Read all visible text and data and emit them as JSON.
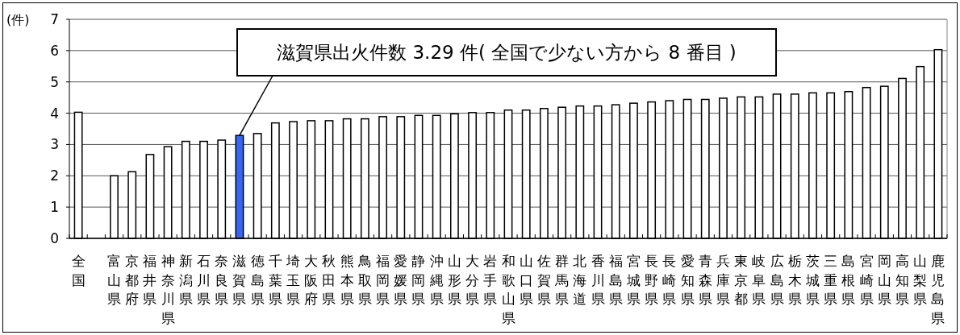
{
  "chart_data": {
    "type": "bar",
    "ylabel": "(件)",
    "categories": [
      "全国",
      null,
      "富山県",
      "京都府",
      "福井県",
      "神奈川県",
      "新潟県",
      "石川県",
      "奈良県",
      "滋賀県",
      "徳島県",
      "千葉県",
      "埼玉県",
      "大阪府",
      "秋田県",
      "熊本県",
      "鳥取県",
      "福岡県",
      "愛媛県",
      "静岡県",
      "沖縄県",
      "山形県",
      "大分県",
      "岩手県",
      "和歌山県",
      "山口県",
      "佐賀県",
      "群馬県",
      "北海道",
      "香川県",
      "福島県",
      "宮城県",
      "長野県",
      "長崎県",
      "愛知県",
      "青森県",
      "兵庫県",
      "東京都",
      "岐阜県",
      "広島県",
      "栃木県",
      "茨城県",
      "三重県",
      "島根県",
      "宮崎県",
      "岡山県",
      "高知県",
      "山梨県",
      "鹿児島県"
    ],
    "values": [
      4.03,
      null,
      2.0,
      2.13,
      2.68,
      2.93,
      3.1,
      3.1,
      3.14,
      3.29,
      3.35,
      3.69,
      3.73,
      3.76,
      3.76,
      3.82,
      3.82,
      3.89,
      3.89,
      3.93,
      3.93,
      3.98,
      4.02,
      4.02,
      4.1,
      4.1,
      4.15,
      4.19,
      4.23,
      4.23,
      4.27,
      4.32,
      4.36,
      4.4,
      4.44,
      4.44,
      4.48,
      4.52,
      4.52,
      4.61,
      4.61,
      4.65,
      4.65,
      4.69,
      4.82,
      4.86,
      5.11,
      5.49,
      6.03
    ],
    "colors": [
      "#ffffff",
      null,
      "#ffffff",
      "#ffffff",
      "#ffffff",
      "#ffffff",
      "#ffffff",
      "#ffffff",
      "#ffffff",
      "#3366ff",
      "#ffffff",
      "#ffffff",
      "#ffffff",
      "#ffffff",
      "#ffffff",
      "#ffffff",
      "#ffffff",
      "#ffffff",
      "#ffffff",
      "#ffffff",
      "#ffffff",
      "#ffffff",
      "#ffffff",
      "#ffffff",
      "#ffffff",
      "#ffffff",
      "#ffffff",
      "#ffffff",
      "#ffffff",
      "#ffffff",
      "#ffffff",
      "#ffffff",
      "#ffffff",
      "#ffffff",
      "#ffffff",
      "#ffffff",
      "#ffffff",
      "#ffffff",
      "#ffffff",
      "#ffffff",
      "#ffffff",
      "#ffffff",
      "#ffffff",
      "#ffffff",
      "#ffffff",
      "#ffffff",
      "#ffffff",
      "#ffffff",
      "#ffffff"
    ],
    "ylim": [
      0,
      7
    ],
    "yticks": [
      0,
      1,
      2,
      3,
      4,
      5,
      6,
      7
    ],
    "grid": "y",
    "annotations": [
      {
        "text": "滋賀県出火件数 3.29 件( 全国で少ない方から 8 番目 )",
        "x": "滋賀県",
        "y": 3.29
      }
    ]
  }
}
